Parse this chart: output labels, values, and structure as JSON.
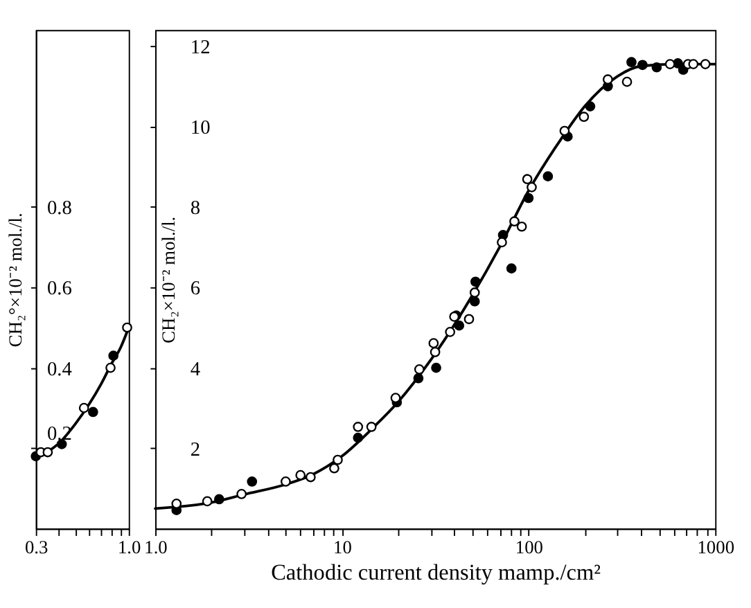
{
  "chart_data": [
    {
      "type": "scatter",
      "ylabel": "CH₂°×10⁻² mol./l.",
      "xlim": [
        0.3,
        1.0
      ],
      "ylim": [
        0,
        1.24
      ],
      "log": "x",
      "grid": false,
      "xticks": [
        {
          "value": 0.3,
          "label": "0.3"
        },
        {
          "value": 0.4,
          "label": null
        },
        {
          "value": 0.5,
          "label": null
        },
        {
          "value": 0.6,
          "label": null
        },
        {
          "value": 0.7,
          "label": null
        },
        {
          "value": 0.8,
          "label": null
        },
        {
          "value": 0.9,
          "label": null
        },
        {
          "value": 1.0,
          "label": "1.0"
        }
      ],
      "yticks": [
        0.2,
        0.4,
        0.6,
        0.8
      ],
      "series": [
        {
          "type": "line",
          "line_style": "solid",
          "color": "#000000",
          "x": [
            0.3,
            0.4,
            0.5,
            0.6,
            0.7,
            0.8,
            0.9,
            1.0
          ],
          "values": [
            0.18,
            0.21,
            0.26,
            0.31,
            0.36,
            0.41,
            0.45,
            0.5
          ]
        },
        {
          "marker": "circle",
          "color": "#000000",
          "x": [
            0.3,
            0.42,
            0.63,
            0.82
          ],
          "values": [
            0.18,
            0.21,
            0.29,
            0.43
          ]
        },
        {
          "marker": "circle",
          "color": "#ffffff",
          "x": [
            0.32,
            0.35,
            0.56,
            0.79,
            0.98
          ],
          "values": [
            0.19,
            0.19,
            0.3,
            0.4,
            0.5
          ]
        }
      ]
    },
    {
      "type": "scatter",
      "xlabel": "Cathodic current density mamp./cm²",
      "ylabel": "CH₂×10⁻² mol./l.",
      "xlim": [
        1,
        1000
      ],
      "ylim": [
        0,
        12.4
      ],
      "log": "x",
      "grid": false,
      "xticks": [
        {
          "value": 1,
          "label": "1.0"
        },
        {
          "value": 2,
          "label": null
        },
        {
          "value": 3,
          "label": null
        },
        {
          "value": 4,
          "label": null
        },
        {
          "value": 5,
          "label": null
        },
        {
          "value": 6,
          "label": null
        },
        {
          "value": 7,
          "label": null
        },
        {
          "value": 8,
          "label": null
        },
        {
          "value": 9,
          "label": null
        },
        10,
        {
          "value": 20,
          "label": null
        },
        {
          "value": 30,
          "label": null
        },
        {
          "value": 40,
          "label": null
        },
        {
          "value": 50,
          "label": null
        },
        {
          "value": 60,
          "label": null
        },
        {
          "value": 70,
          "label": null
        },
        {
          "value": 80,
          "label": null
        },
        {
          "value": 90,
          "label": null
        },
        100,
        {
          "value": 200,
          "label": null
        },
        {
          "value": 300,
          "label": null
        },
        {
          "value": 400,
          "label": null
        },
        {
          "value": 500,
          "label": null
        },
        {
          "value": 600,
          "label": null
        },
        {
          "value": 700,
          "label": null
        },
        {
          "value": 800,
          "label": null
        },
        {
          "value": 900,
          "label": null
        },
        1000
      ],
      "yticks": [
        2,
        4,
        6,
        8,
        10,
        12
      ],
      "series": [
        {
          "type": "line",
          "line_style": "solid",
          "color": "#000000",
          "x": [
            1,
            2,
            3,
            5,
            7,
            10,
            15,
            20,
            30,
            50,
            70,
            100,
            150,
            200,
            300,
            400,
            600,
            1000
          ],
          "values": [
            0.5,
            0.65,
            0.85,
            1.1,
            1.35,
            1.8,
            2.55,
            3.15,
            4.2,
            5.8,
            7.0,
            8.4,
            9.7,
            10.5,
            11.25,
            11.5,
            11.55,
            11.55
          ]
        },
        {
          "marker": "circle",
          "color": "#000000",
          "x": [
            1.3,
            2.2,
            3.3,
            12.2,
            19.7,
            25.7,
            32,
            41,
            42.5,
            52,
            51.5,
            73,
            81,
            100,
            127,
            162,
            214,
            266,
            356,
            408,
            486,
            631,
            674
          ],
          "values": [
            0.46,
            0.73,
            1.17,
            2.26,
            3.14,
            3.74,
            4.0,
            5.3,
            5.05,
            6.14,
            5.65,
            7.3,
            6.47,
            8.22,
            8.76,
            9.75,
            10.5,
            11.0,
            11.6,
            11.53,
            11.47,
            11.57,
            11.41
          ]
        },
        {
          "marker": "circle",
          "color": "#ffffff",
          "x": [
            1.3,
            1.9,
            2.9,
            5.0,
            6.0,
            6.8,
            9.1,
            9.5,
            12.2,
            14.4,
            19.4,
            26,
            31,
            31.6,
            38,
            40,
            48,
            51.5,
            72,
            84,
            92,
            98.5,
            104,
            156,
            198,
            266,
            337,
            573,
            715,
            764,
            886
          ],
          "values": [
            0.62,
            0.68,
            0.86,
            1.17,
            1.33,
            1.28,
            1.5,
            1.71,
            2.53,
            2.53,
            3.25,
            3.96,
            4.61,
            4.39,
            4.89,
            5.27,
            5.21,
            5.87,
            7.12,
            7.64,
            7.51,
            8.69,
            8.49,
            9.89,
            10.24,
            11.17,
            11.11,
            11.55,
            11.55,
            11.55,
            11.55
          ]
        }
      ]
    }
  ]
}
